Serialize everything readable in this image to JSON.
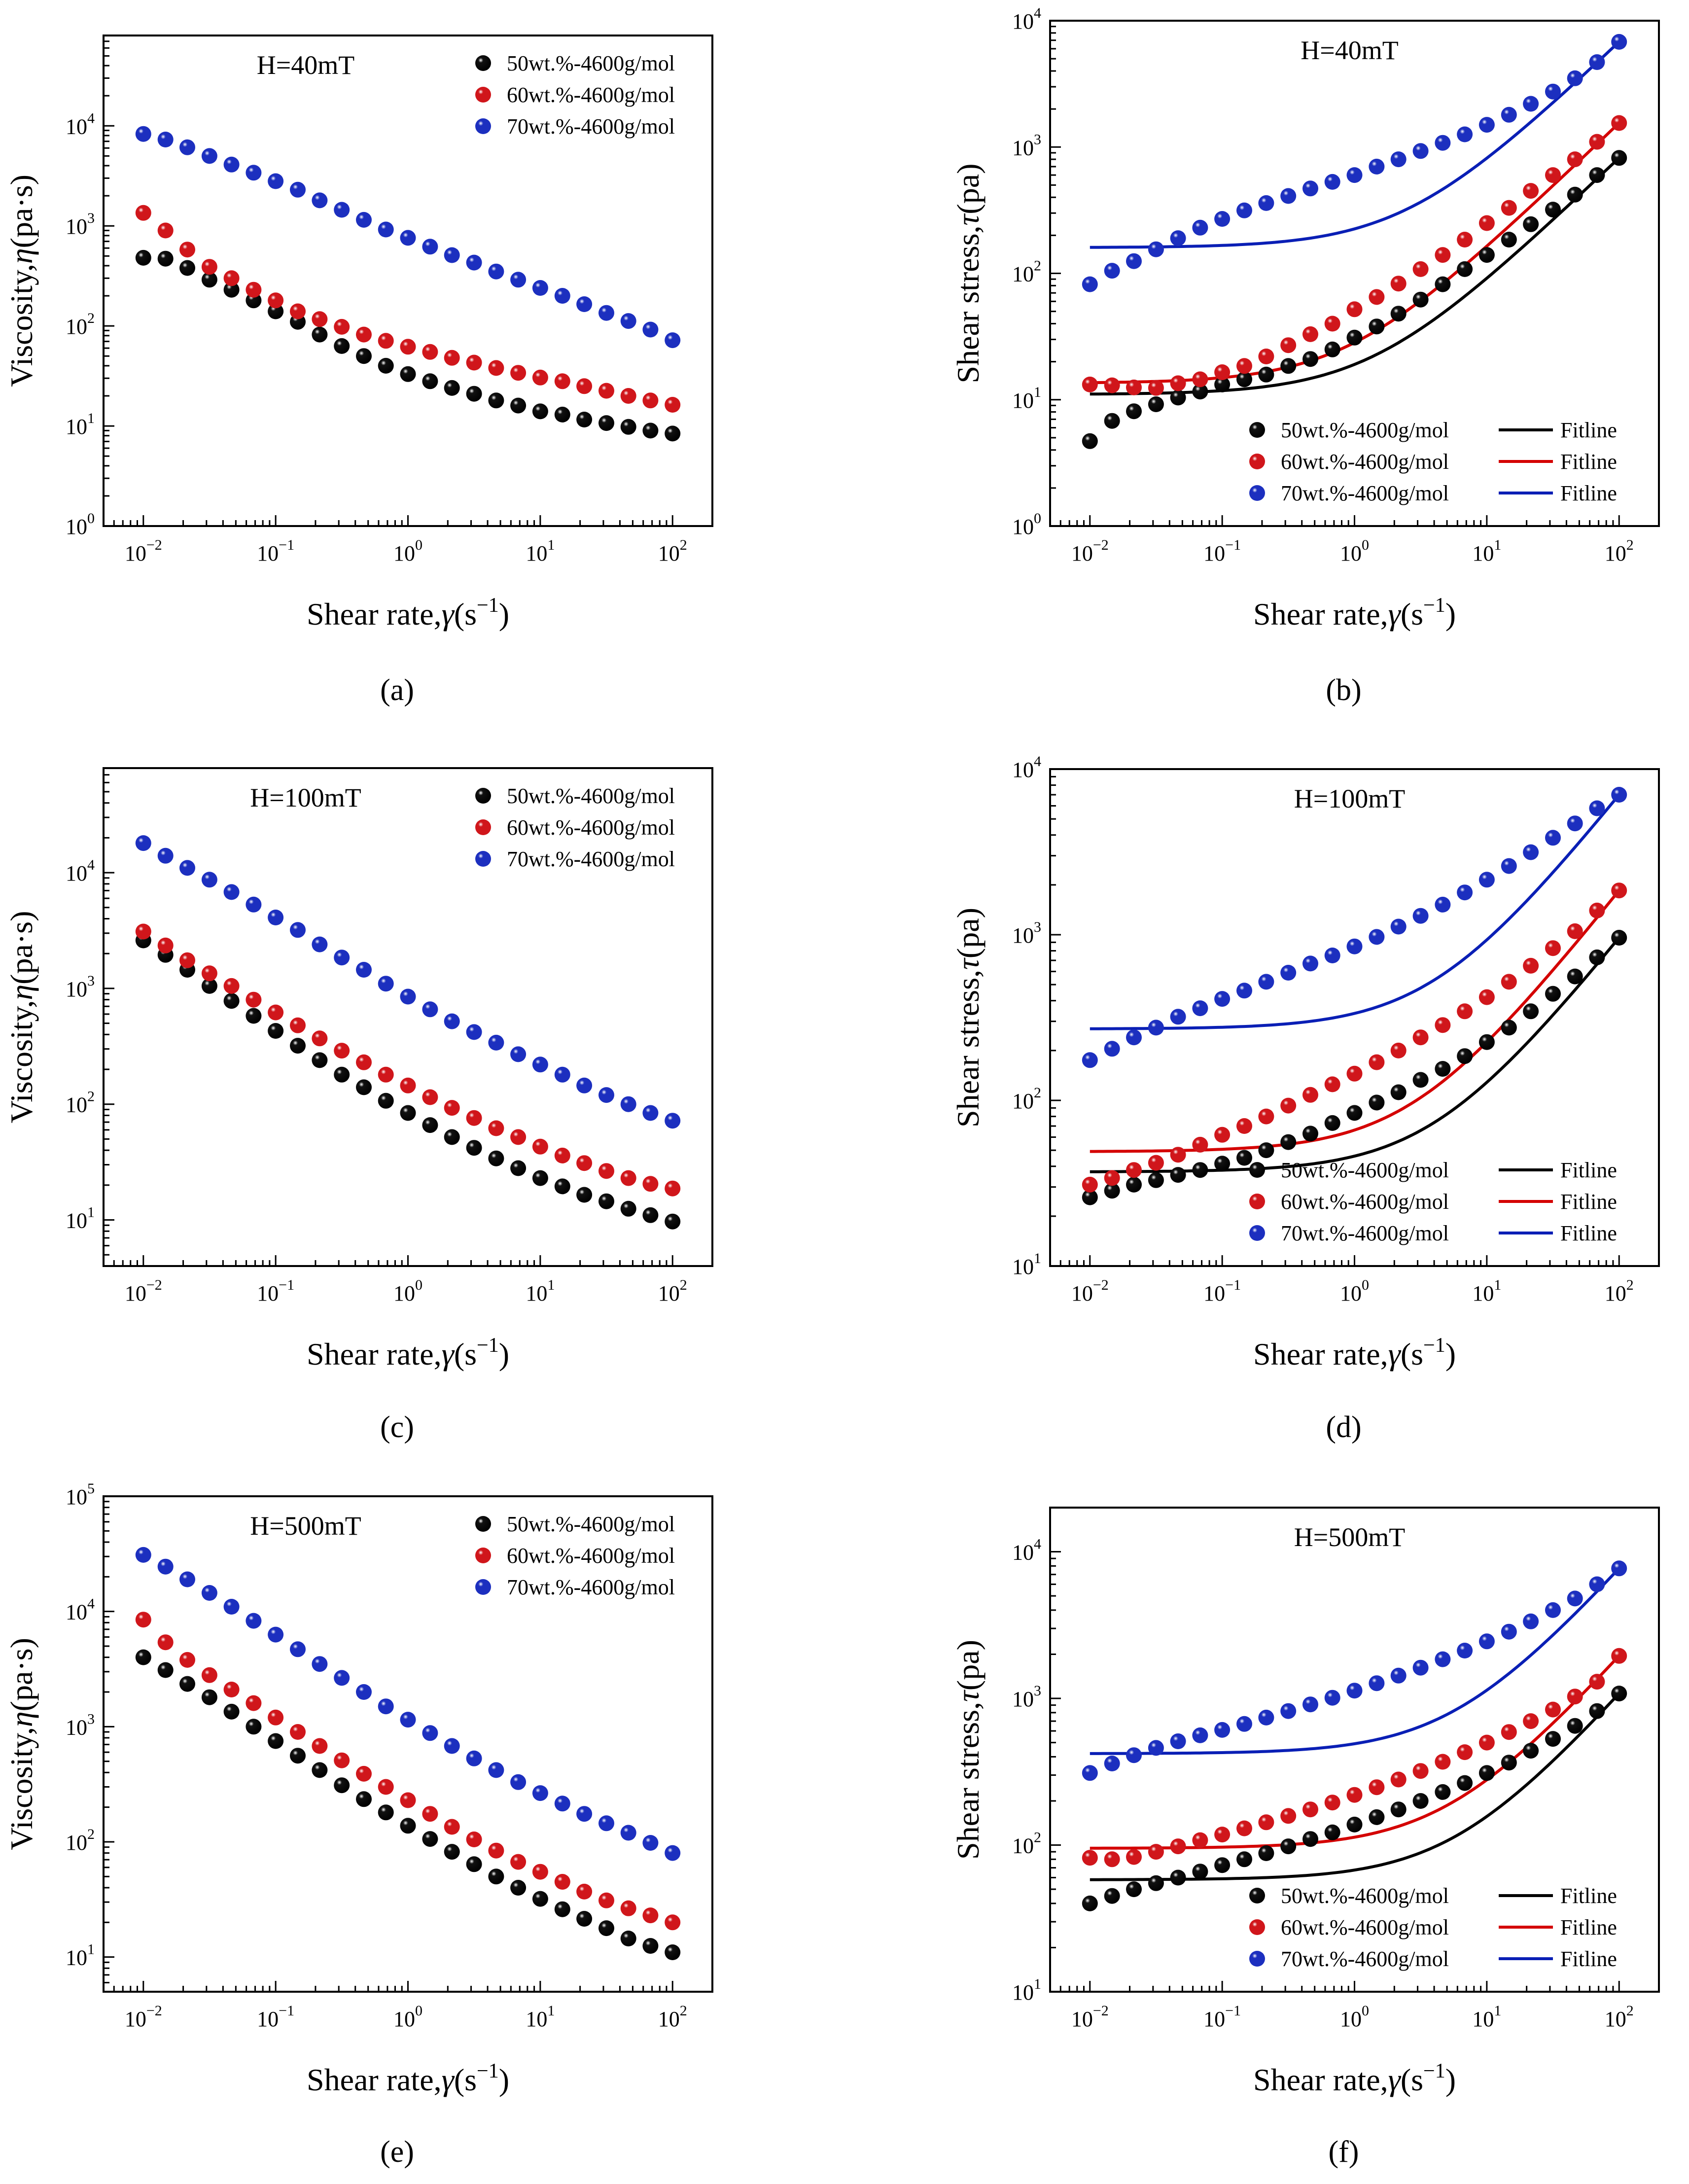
{
  "figure": {
    "series_names": [
      "50wt.%-4600g/mol",
      "60wt.%-4600g/mol",
      "70wt.%-4600g/mol"
    ],
    "fit_label": "Fitline",
    "colors": {
      "black": "#111111",
      "red": "#d0161b",
      "blue": "#1c2fbf",
      "fit_black": "#000000",
      "fit_red": "#d40000",
      "fit_blue": "#0a1fb5"
    }
  },
  "chart_data": [
    {
      "type": "scatter",
      "panel_label": "(a)",
      "annotation": "H=40mT",
      "title": "",
      "xlabel": "Shear rate,γ(s⁻¹)",
      "ylabel": "Viscosity,η(pa·s)",
      "xscale": "log",
      "yscale": "log",
      "xlim": [
        0.005,
        200
      ],
      "ylim": [
        1,
        80000
      ],
      "x_ticks": [
        "10⁻²",
        "10⁻¹",
        "10⁰",
        "10¹",
        "10²"
      ],
      "y_ticks": [
        "10⁰",
        "10¹",
        "10²",
        "10³",
        "10⁴"
      ],
      "legend_position": "top-right",
      "series": [
        {
          "name": "50wt.%-4600g/mol",
          "color_key": "black",
          "values": [
            480,
            470,
            380,
            290,
            230,
            180,
            140,
            110,
            82,
            63,
            50,
            40,
            33,
            28,
            24,
            21,
            18,
            16,
            14,
            13,
            11.6,
            10.7,
            9.8,
            9,
            8.4
          ]
        },
        {
          "name": "60wt.%-4600g/mol",
          "color_key": "red",
          "values": [
            1350,
            900,
            580,
            390,
            300,
            230,
            180,
            140,
            117,
            98,
            82,
            71,
            62,
            55,
            48,
            43,
            38,
            34,
            30.5,
            28,
            25,
            22.5,
            20,
            18,
            16.3
          ]
        },
        {
          "name": "70wt.%-4600g/mol",
          "color_key": "blue",
          "values": [
            8300,
            7300,
            6100,
            5000,
            4100,
            3400,
            2800,
            2300,
            1800,
            1450,
            1150,
            920,
            760,
            620,
            510,
            430,
            350,
            290,
            240,
            200,
            165,
            135,
            112,
            92,
            72
          ]
        }
      ],
      "x": [
        0.01,
        0.0147,
        0.0215,
        0.0316,
        0.0464,
        0.0681,
        0.1,
        0.147,
        0.215,
        0.316,
        0.464,
        0.681,
        1,
        1.47,
        2.15,
        3.16,
        4.64,
        6.81,
        10,
        14.7,
        21.5,
        31.6,
        46.4,
        68.1,
        100
      ]
    },
    {
      "type": "scatter",
      "panel_label": "(b)",
      "annotation": "H=40mT",
      "title": "",
      "xlabel": "Shear rate,γ(s⁻¹)",
      "ylabel": "Shear stress,τ(pa)",
      "xscale": "log",
      "yscale": "log",
      "xlim": [
        0.005,
        200
      ],
      "ylim": [
        1,
        10000
      ],
      "x_ticks": [
        "10⁻²",
        "10⁻¹",
        "10⁰",
        "10¹",
        "10²"
      ],
      "y_ticks": [
        "10⁰",
        "10¹",
        "10²",
        "10³",
        "10⁴"
      ],
      "legend_position": "bottom-right",
      "fit": {
        "model": "herschel-bulkley",
        "params": [
          [
            11,
            8.4
          ],
          [
            13.5,
            15.5
          ],
          [
            160,
            68
          ]
        ]
      },
      "series": [
        {
          "name": "50wt.%-4600g/mol",
          "color_key": "black",
          "values": [
            4.7,
            6.8,
            8.1,
            9.2,
            10.4,
            11.6,
            13.2,
            14.5,
            15.8,
            18.5,
            21,
            25,
            31,
            38,
            48,
            62,
            82,
            108,
            140,
            185,
            245,
            320,
            420,
            600,
            820
          ]
        },
        {
          "name": "60wt.%-4600g/mol",
          "color_key": "red",
          "values": [
            13.2,
            13.0,
            12.5,
            12.4,
            13.5,
            14.5,
            16.5,
            18.5,
            22,
            27,
            33,
            40,
            52,
            65,
            83,
            108,
            140,
            185,
            250,
            330,
            450,
            600,
            800,
            1100,
            1550
          ]
        },
        {
          "name": "70wt.%-4600g/mol",
          "color_key": "blue",
          "values": [
            82,
            105,
            125,
            155,
            190,
            230,
            270,
            315,
            360,
            410,
            470,
            530,
            600,
            700,
            800,
            930,
            1080,
            1260,
            1500,
            1800,
            2200,
            2750,
            3500,
            4700,
            6800
          ]
        }
      ],
      "x": [
        0.01,
        0.0147,
        0.0215,
        0.0316,
        0.0464,
        0.0681,
        0.1,
        0.147,
        0.215,
        0.316,
        0.464,
        0.681,
        1,
        1.47,
        2.15,
        3.16,
        4.64,
        6.81,
        10,
        14.7,
        21.5,
        31.6,
        46.4,
        68.1,
        100
      ]
    },
    {
      "type": "scatter",
      "panel_label": "(c)",
      "annotation": "H=100mT",
      "title": "",
      "xlabel": "Shear rate,γ(s⁻¹)",
      "ylabel": "Viscosity,η(pa·s)",
      "xscale": "log",
      "yscale": "log",
      "xlim": [
        0.005,
        200
      ],
      "ylim": [
        4,
        80000
      ],
      "x_ticks": [
        "10⁻²",
        "10⁻¹",
        "10⁰",
        "10¹",
        "10²"
      ],
      "y_ticks": [
        "10¹",
        "10²",
        "10³",
        "10⁴"
      ],
      "legend_position": "top-right",
      "series": [
        {
          "name": "50wt.%-4600g/mol",
          "color_key": "black",
          "values": [
            2600,
            1950,
            1450,
            1050,
            780,
            580,
            430,
            320,
            240,
            180,
            140,
            107,
            84,
            66,
            52,
            42,
            34,
            28,
            23,
            19.5,
            16.5,
            14.5,
            12.5,
            11,
            9.7
          ]
        },
        {
          "name": "60wt.%-4600g/mol",
          "color_key": "red",
          "values": [
            3100,
            2350,
            1750,
            1350,
            1050,
            800,
            620,
            480,
            370,
            290,
            230,
            180,
            145,
            115,
            93,
            76,
            62,
            52,
            43,
            36,
            31,
            26.5,
            23,
            20.5,
            18.7
          ]
        },
        {
          "name": "70wt.%-4600g/mol",
          "color_key": "blue",
          "values": [
            18000,
            14000,
            11000,
            8700,
            6800,
            5300,
            4100,
            3200,
            2400,
            1850,
            1450,
            1100,
            850,
            660,
            520,
            420,
            340,
            270,
            220,
            180,
            145,
            120,
            100,
            84,
            72
          ]
        }
      ],
      "x": [
        0.01,
        0.0147,
        0.0215,
        0.0316,
        0.0464,
        0.0681,
        0.1,
        0.147,
        0.215,
        0.316,
        0.464,
        0.681,
        1,
        1.47,
        2.15,
        3.16,
        4.64,
        6.81,
        10,
        14.7,
        21.5,
        31.6,
        46.4,
        68.1,
        100
      ]
    },
    {
      "type": "scatter",
      "panel_label": "(d)",
      "annotation": "H=100mT",
      "title": "",
      "xlabel": "Shear rate,γ(s⁻¹)",
      "ylabel": "Shear stress,τ(pa)",
      "xscale": "log",
      "yscale": "log",
      "xlim": [
        0.005,
        200
      ],
      "ylim": [
        10,
        10000
      ],
      "x_ticks": [
        "10⁻²",
        "10⁻¹",
        "10⁰",
        "10¹",
        "10²"
      ],
      "y_ticks": [
        "10¹",
        "10²",
        "10³",
        "10⁴"
      ],
      "legend_position": "bottom-right",
      "fit": {
        "model": "herschel-bulkley",
        "params": [
          [
            37,
            9.5
          ],
          [
            49,
            18
          ],
          [
            270,
            68
          ]
        ]
      },
      "series": [
        {
          "name": "50wt.%-4600g/mol",
          "color_key": "black",
          "values": [
            26,
            28.5,
            31,
            33,
            35.5,
            38,
            41.5,
            45,
            50,
            56,
            63,
            73,
            84,
            97,
            112,
            133,
            155,
            185,
            225,
            275,
            345,
            440,
            560,
            730,
            960
          ]
        },
        {
          "name": "60wt.%-4600g/mol",
          "color_key": "red",
          "values": [
            31,
            34,
            38,
            42,
            47,
            54,
            62,
            70,
            80,
            93,
            108,
            125,
            145,
            170,
            200,
            240,
            285,
            345,
            420,
            520,
            650,
            830,
            1050,
            1400,
            1850
          ]
        },
        {
          "name": "70wt.%-4600g/mol",
          "color_key": "blue",
          "values": [
            175,
            205,
            240,
            275,
            320,
            360,
            410,
            460,
            520,
            590,
            670,
            750,
            850,
            970,
            1120,
            1300,
            1520,
            1800,
            2150,
            2600,
            3150,
            3850,
            4700,
            5800,
            7000
          ]
        }
      ],
      "x": [
        0.01,
        0.0147,
        0.0215,
        0.0316,
        0.0464,
        0.0681,
        0.1,
        0.147,
        0.215,
        0.316,
        0.464,
        0.681,
        1,
        1.47,
        2.15,
        3.16,
        4.64,
        6.81,
        10,
        14.7,
        21.5,
        31.6,
        46.4,
        68.1,
        100
      ]
    },
    {
      "type": "scatter",
      "panel_label": "(e)",
      "annotation": "H=500mT",
      "title": "",
      "xlabel": "Shear rate,γ(s⁻¹)",
      "ylabel": "Viscosity,η(pa·s)",
      "xscale": "log",
      "yscale": "log",
      "xlim": [
        0.005,
        200
      ],
      "ylim": [
        5,
        100000
      ],
      "x_ticks": [
        "10⁻²",
        "10⁻¹",
        "10⁰",
        "10¹",
        "10²"
      ],
      "y_ticks": [
        "10¹",
        "10²",
        "10³",
        "10⁴",
        "10⁵"
      ],
      "legend_position": "top-right",
      "series": [
        {
          "name": "50wt.%-4600g/mol",
          "color_key": "black",
          "values": [
            4000,
            3100,
            2350,
            1800,
            1350,
            1000,
            750,
            560,
            420,
            310,
            235,
            180,
            138,
            106,
            82,
            64,
            50,
            40,
            32,
            26,
            21.5,
            17.8,
            14.5,
            12.5,
            11
          ]
        },
        {
          "name": "60wt.%-4600g/mol",
          "color_key": "red",
          "values": [
            8500,
            5400,
            3800,
            2800,
            2100,
            1600,
            1200,
            900,
            680,
            510,
            390,
            300,
            230,
            175,
            135,
            105,
            84,
            67,
            55,
            45,
            37,
            31,
            26.5,
            23,
            20
          ]
        },
        {
          "name": "70wt.%-4600g/mol",
          "color_key": "blue",
          "values": [
            31000,
            24500,
            19000,
            14500,
            11000,
            8300,
            6300,
            4700,
            3500,
            2650,
            2000,
            1500,
            1150,
            880,
            680,
            530,
            420,
            330,
            265,
            215,
            175,
            145,
            120,
            98,
            80
          ]
        }
      ],
      "x": [
        0.01,
        0.0147,
        0.0215,
        0.0316,
        0.0464,
        0.0681,
        0.1,
        0.147,
        0.215,
        0.316,
        0.464,
        0.681,
        1,
        1.47,
        2.15,
        3.16,
        4.64,
        6.81,
        10,
        14.7,
        21.5,
        31.6,
        46.4,
        68.1,
        100
      ]
    },
    {
      "type": "scatter",
      "panel_label": "(f)",
      "annotation": "H=500mT",
      "title": "",
      "xlabel": "Shear rate,γ(s⁻¹)",
      "ylabel": "Shear stress,τ(pa)",
      "xscale": "log",
      "yscale": "log",
      "xlim": [
        0.005,
        200
      ],
      "ylim": [
        10,
        20000
      ],
      "x_ticks": [
        "10⁻²",
        "10⁻¹",
        "10⁰",
        "10¹",
        "10²"
      ],
      "y_ticks": [
        "10¹",
        "10²",
        "10³",
        "10⁴"
      ],
      "legend_position": "bottom-right",
      "fit": {
        "model": "herschel-bulkley",
        "params": [
          [
            58,
            10
          ],
          [
            95,
            19
          ],
          [
            420,
            74
          ]
        ]
      },
      "series": [
        {
          "name": "50wt.%-4600g/mol",
          "color_key": "black",
          "values": [
            40,
            45,
            50,
            55,
            60,
            66,
            73,
            80,
            88,
            98,
            110,
            122,
            138,
            155,
            175,
            200,
            230,
            265,
            310,
            365,
            440,
            530,
            650,
            820,
            1080
          ]
        },
        {
          "name": "60wt.%-4600g/mol",
          "color_key": "red",
          "values": [
            82,
            80,
            83,
            90,
            98,
            108,
            118,
            130,
            143,
            158,
            175,
            195,
            220,
            248,
            280,
            320,
            370,
            430,
            500,
            590,
            700,
            840,
            1030,
            1300,
            1950
          ]
        },
        {
          "name": "70wt.%-4600g/mol",
          "color_key": "blue",
          "values": [
            310,
            360,
            410,
            460,
            510,
            560,
            610,
            670,
            740,
            820,
            910,
            1010,
            1130,
            1270,
            1430,
            1620,
            1850,
            2120,
            2450,
            2850,
            3350,
            4000,
            4800,
            6000,
            7700
          ]
        }
      ],
      "x": [
        0.01,
        0.0147,
        0.0215,
        0.0316,
        0.0464,
        0.0681,
        0.1,
        0.147,
        0.215,
        0.316,
        0.464,
        0.681,
        1,
        1.47,
        2.15,
        3.16,
        4.64,
        6.81,
        10,
        14.7,
        21.5,
        31.6,
        46.4,
        68.1,
        100
      ]
    }
  ]
}
